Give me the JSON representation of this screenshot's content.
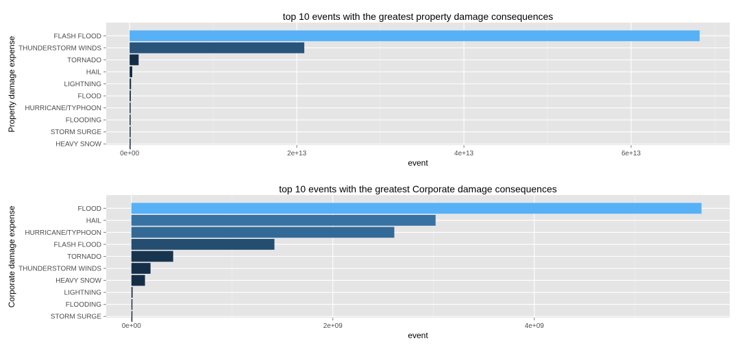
{
  "chart_data": [
    {
      "type": "bar",
      "orientation": "horizontal",
      "title": "top 10 events with the greatest property damage consequences",
      "xlabel": "event",
      "ylabel": "Property damage expense",
      "categories": [
        "FLASH FLOOD",
        "THUNDERSTORM WINDS",
        "TORNADO",
        "HAIL",
        "LIGHTNING",
        "FLOOD",
        "HURRICANE/TYPHOON",
        "FLOODING",
        "STORM SURGE",
        "HEAVY SNOW"
      ],
      "values": [
        68200000000000,
        20900000000000,
        1080000000000,
        315000000000,
        172000000000,
        145000000000,
        50000000000,
        30000000000,
        20000000000,
        15000000000
      ],
      "xlim": [
        -2800000000000,
        71800000000000
      ],
      "ticks": [
        0,
        20000000000000,
        40000000000000,
        60000000000000
      ],
      "tick_labels": [
        "0e+00",
        "2e+13",
        "4e+13",
        "6e+13"
      ],
      "fill_scale": {
        "low": "#132B43",
        "high": "#56B1F7"
      },
      "grid": true,
      "legend": "none"
    },
    {
      "type": "bar",
      "orientation": "horizontal",
      "title": "top 10 events with the greatest Corporate damage consequences",
      "xlabel": "event",
      "ylabel": "Corporate damage expense",
      "categories": [
        "FLOOD",
        "HAIL",
        "HURRICANE/TYPHOON",
        "FLASH FLOOD",
        "TORNADO",
        "THUNDERSTORM WINDS",
        "HEAVY SNOW",
        "LIGHTNING",
        "FLOODING",
        "STORM SURGE"
      ],
      "values": [
        5660000000,
        3020000000,
        2610000000,
        1420000000,
        415000000,
        190000000,
        135000000,
        12000000,
        8000000,
        1000000
      ],
      "xlim": [
        -250000000,
        5940000000
      ],
      "ticks": [
        0,
        2000000000,
        4000000000
      ],
      "tick_labels": [
        "0e+00",
        "2e+09",
        "4e+09"
      ],
      "fill_scale": {
        "low": "#132B43",
        "high": "#56B1F7"
      },
      "grid": true,
      "legend": "none"
    }
  ]
}
